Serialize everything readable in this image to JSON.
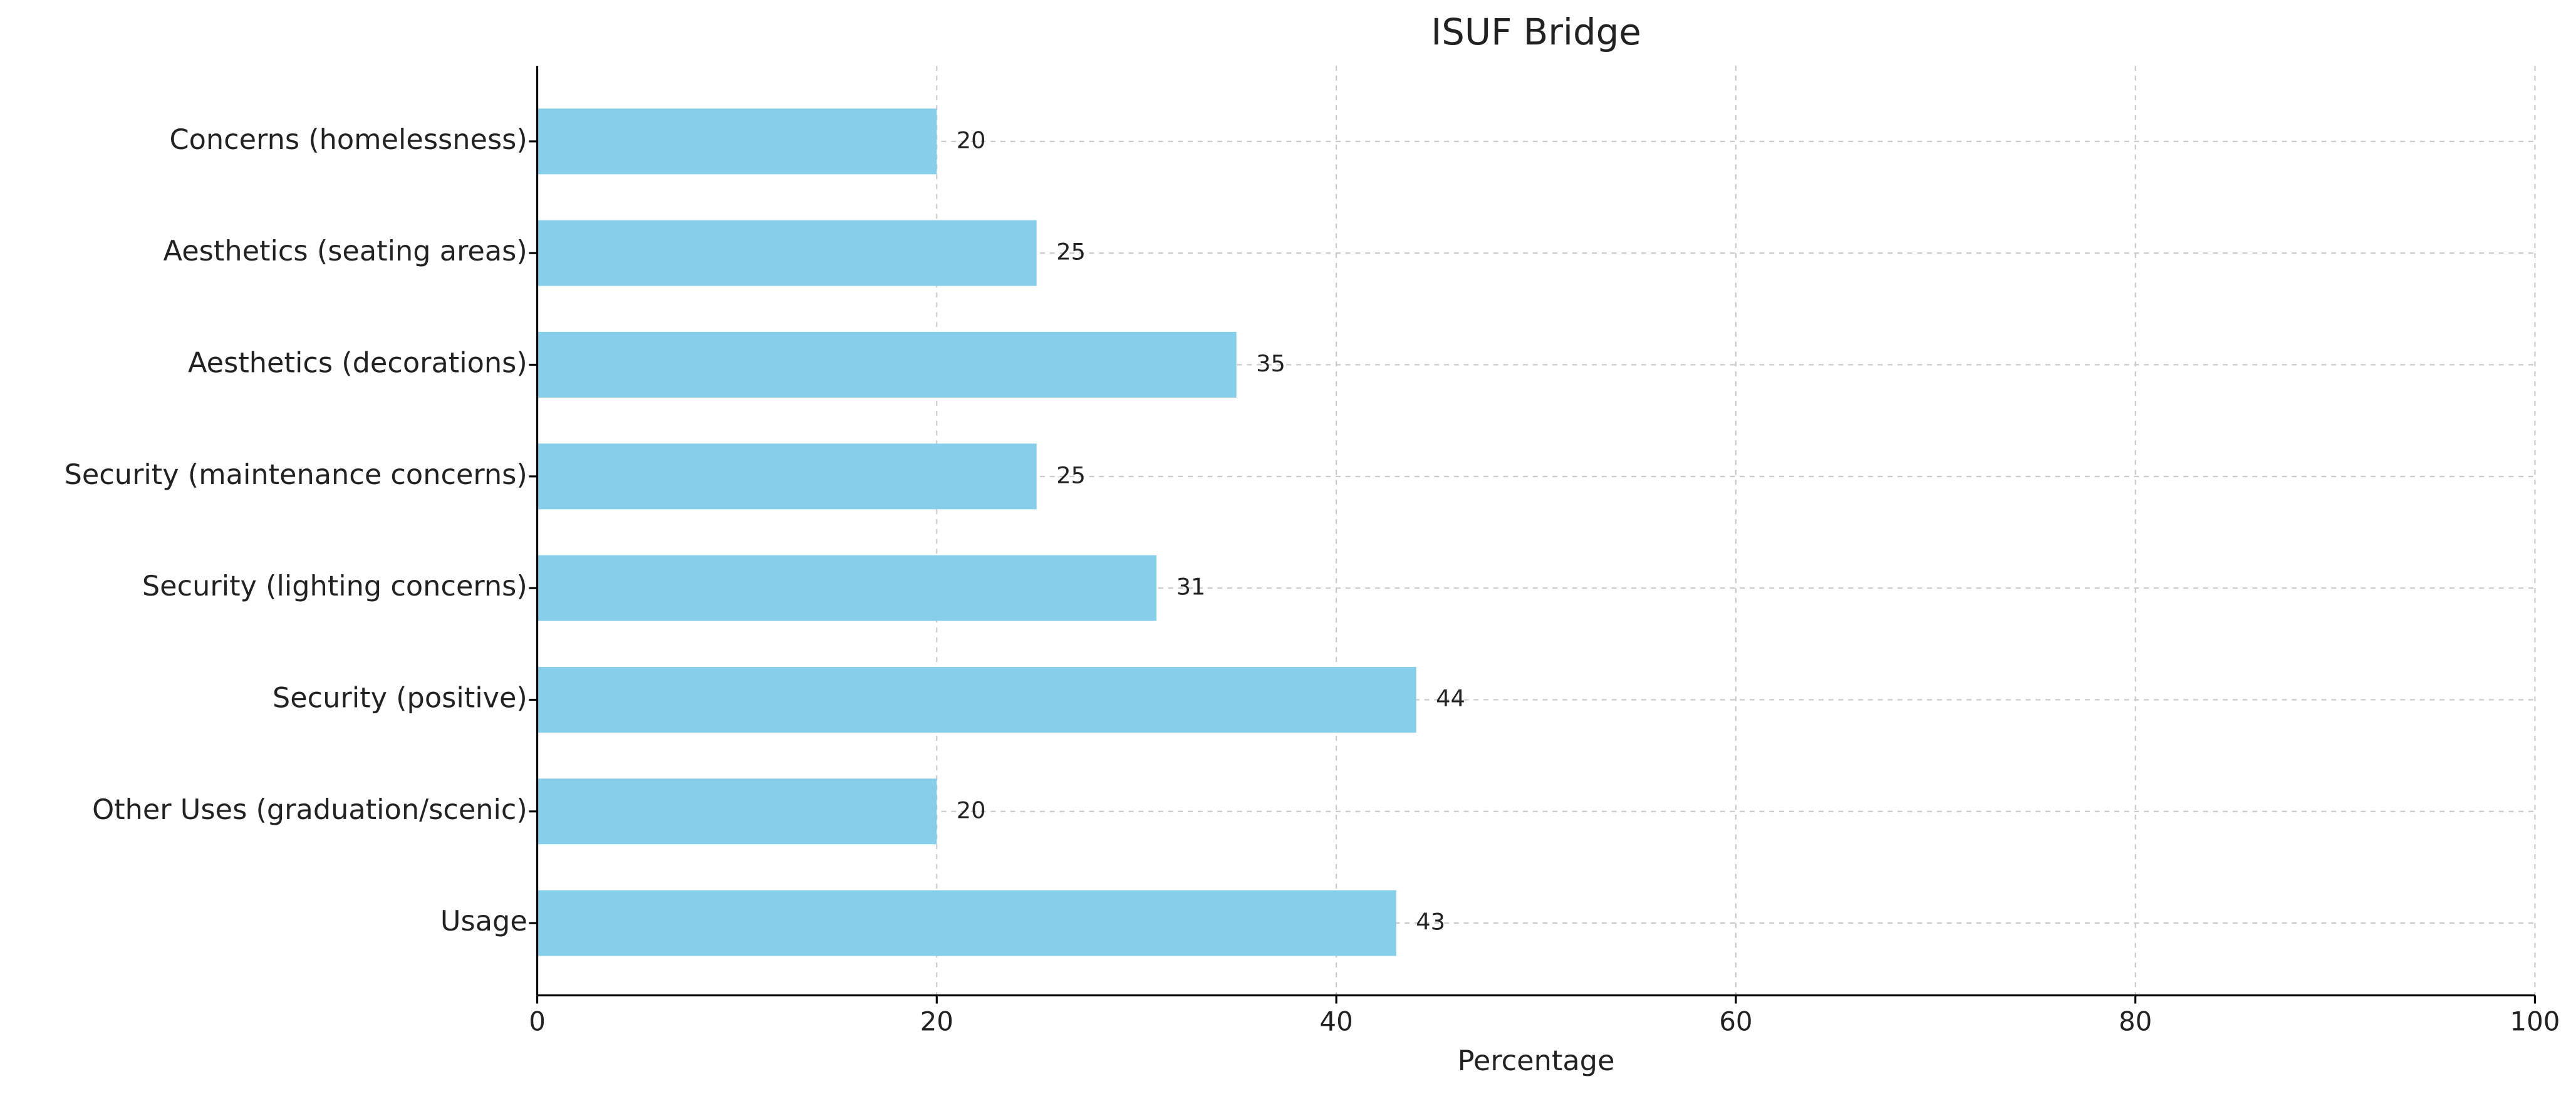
{
  "chart_data": {
    "type": "barh",
    "title": "ISUF Bridge",
    "x_label": "Percentage",
    "categories": [
      "Usage",
      "Other Uses (graduation/scenic)",
      "Security (positive)",
      "Security (lighting concerns)",
      "Security (maintenance concerns)",
      "Aesthetics (decorations)",
      "Aesthetics (seating areas)",
      "Concerns (homelessness)"
    ],
    "values": [
      43,
      20,
      44,
      31,
      25,
      35,
      25,
      20
    ],
    "color": "#87ceeb",
    "xlim": [
      0,
      100
    ],
    "xticks": [
      0,
      20,
      40,
      60,
      80,
      100
    ],
    "grid": true
  }
}
